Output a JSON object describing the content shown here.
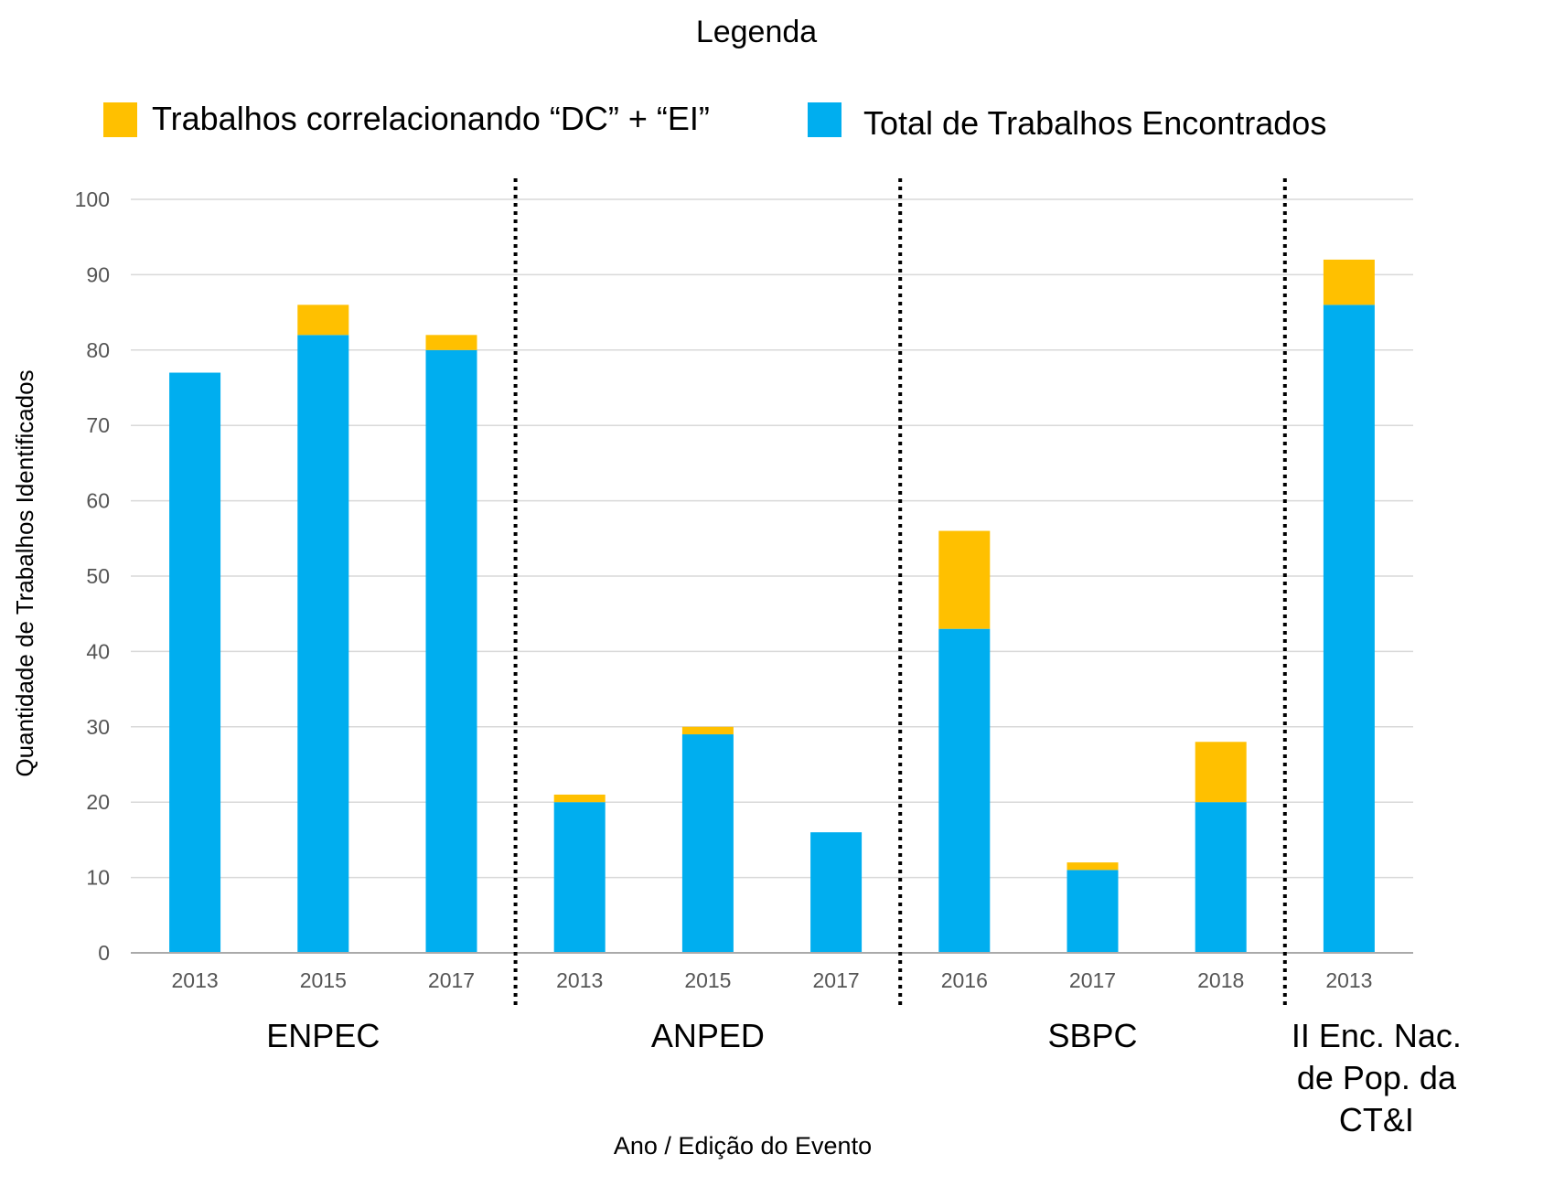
{
  "chart_data": {
    "type": "bar",
    "stacked": true,
    "legend_title": "Legenda",
    "legend_placement": "top",
    "ylabel": "Quantidade de Trabalhos Identificados",
    "xlabel": "Ano / Edição do Evento",
    "ylim": [
      0,
      100
    ],
    "yticks": [
      0,
      10,
      20,
      30,
      40,
      50,
      60,
      70,
      80,
      90,
      100
    ],
    "grid": true,
    "categories": [
      "2013",
      "2015",
      "2017",
      "2013",
      "2015",
      "2017",
      "2016",
      "2017",
      "2018",
      "2013"
    ],
    "groups": [
      {
        "label": [
          "ENPEC"
        ],
        "count": 3
      },
      {
        "label": [
          "ANPED"
        ],
        "count": 3
      },
      {
        "label": [
          "SBPC"
        ],
        "count": 3
      },
      {
        "label": [
          "II Enc. Nac.",
          "de Pop. da",
          "CT&I"
        ],
        "count": 1
      }
    ],
    "series": [
      {
        "name": "Total de Trabalhos Encontrados",
        "color": "#00aeef",
        "values": [
          77,
          82,
          80,
          20,
          29,
          16,
          43,
          11,
          20,
          86
        ]
      },
      {
        "name": "Trabalhos correlacionando “DC” + “EI”",
        "color": "#ffc000",
        "values": [
          0,
          4,
          2,
          1,
          1,
          0,
          13,
          1,
          8,
          6
        ]
      }
    ],
    "legend_order": [
      1,
      0
    ]
  }
}
